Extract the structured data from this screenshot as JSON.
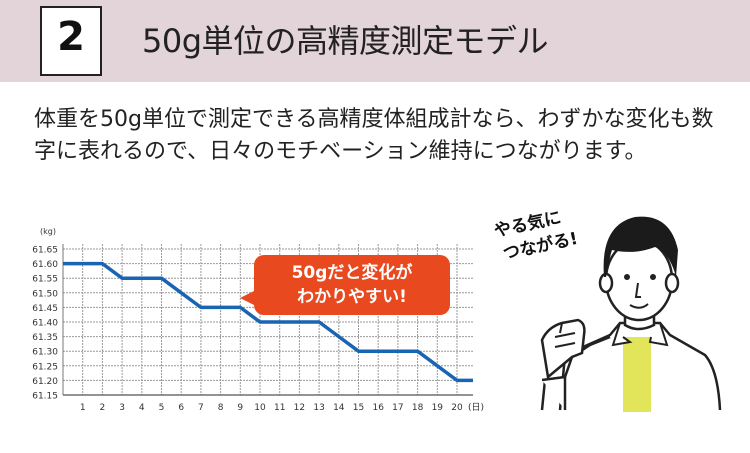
{
  "header": {
    "number": "2",
    "title": "50g単位の高精度測定モデル"
  },
  "description": "体重を50g単位で測定できる高精度体組成計なら、わずかな変化も数字に表れるので、日々のモチベーション維持につながります。",
  "callout": {
    "line1": "50gだと変化が",
    "line2": "わかりやすい!"
  },
  "illustration": {
    "speech_line1": "やる気に",
    "speech_line2": "つながる!",
    "shirt_color": "#e2e55a"
  },
  "chart_data": {
    "type": "line",
    "ylabel": "(kg)",
    "xlabel": "(日)",
    "x": [
      1,
      2,
      3,
      4,
      5,
      6,
      7,
      8,
      9,
      10,
      11,
      12,
      13,
      14,
      15,
      16,
      17,
      18,
      19,
      20
    ],
    "values": [
      61.6,
      61.6,
      61.55,
      61.55,
      61.55,
      61.5,
      61.45,
      61.45,
      61.45,
      61.4,
      61.4,
      61.4,
      61.4,
      61.35,
      61.3,
      61.3,
      61.3,
      61.3,
      61.25,
      61.2
    ],
    "ylim": [
      61.15,
      61.65
    ],
    "yticks": [
      "61.15",
      "61.20",
      "61.25",
      "61.30",
      "61.35",
      "61.40",
      "61.45",
      "61.50",
      "61.55",
      "61.60",
      "61.65"
    ],
    "grid": true,
    "line_color": "#1a64b4"
  }
}
